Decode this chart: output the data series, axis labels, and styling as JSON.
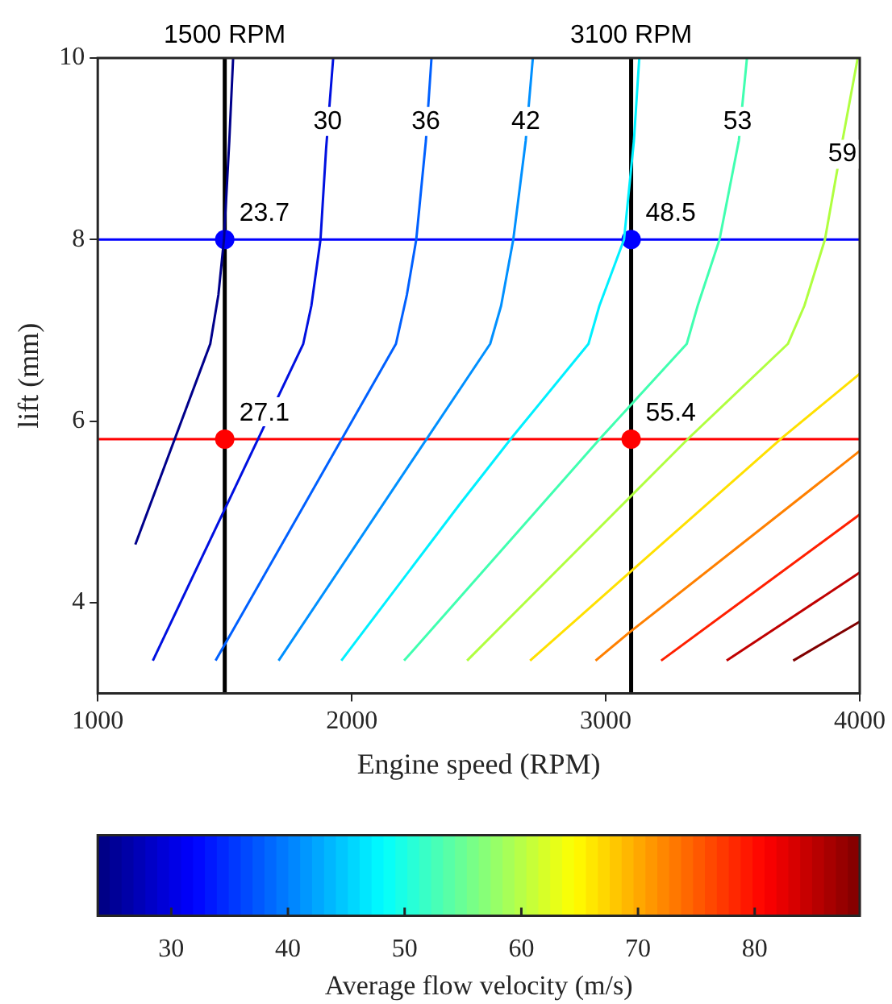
{
  "chart_data": {
    "type": "line",
    "xlabel": "Engine speed (RPM)",
    "ylabel": "lift (mm)",
    "clabel": "Average flow velocity (m/s)",
    "xlim": [
      1000,
      4000
    ],
    "xticks": [
      1000,
      2000,
      3000,
      4000
    ],
    "ylim": [
      3,
      10
    ],
    "yticks": [
      4,
      6,
      8,
      10
    ],
    "clim": [
      23.7,
      89
    ],
    "cticks": [
      30,
      40,
      50,
      60,
      70,
      80
    ],
    "grid": false,
    "legend": false,
    "marker": "none",
    "line_style": "solid",
    "series": [
      {
        "color": "#00008b",
        "x": [
          1148,
          1443,
          1475,
          1497,
          1518,
          1533
        ],
        "values": [
          4.64,
          6.85,
          7.39,
          8.0,
          9.09,
          10
        ]
      },
      {
        "color": "#0010e0",
        "x": [
          1217,
          1809,
          1841,
          1877,
          1899,
          1927
        ],
        "values": [
          3.36,
          6.85,
          7.27,
          8.0,
          9.0,
          10
        ]
      },
      {
        "color": "#0060ff",
        "x": [
          1464,
          2174,
          2217,
          2254,
          2292,
          2314
        ],
        "values": [
          3.36,
          6.85,
          7.39,
          8.0,
          9.09,
          10
        ]
      },
      {
        "color": "#0090ff",
        "x": [
          1712,
          2545,
          2588,
          2636,
          2685,
          2713
        ],
        "values": [
          3.36,
          6.85,
          7.27,
          8.0,
          9.09,
          10
        ]
      },
      {
        "color": "#00f0ff",
        "x": [
          1959,
          2427,
          2631,
          2932,
          2975,
          3072,
          3111,
          3132
        ],
        "values": [
          3.36,
          5.09,
          5.82,
          6.85,
          7.27,
          8.0,
          9.09,
          10
        ]
      },
      {
        "color": "#40ffb0",
        "x": [
          2206,
          2427,
          2982,
          3319,
          3362,
          3448,
          3524,
          3556
        ],
        "values": [
          3.36,
          4.06,
          5.82,
          6.85,
          7.27,
          8.0,
          9.09,
          10
        ]
      },
      {
        "color": "#b0ff40",
        "x": [
          2454,
          3330,
          3717,
          3782,
          3863,
          3932,
          3992
        ],
        "values": [
          3.36,
          5.82,
          6.85,
          7.27,
          8.0,
          9.09,
          10
        ]
      },
      {
        "color": "#ffe000",
        "x": [
          2702,
          3696,
          4000
        ],
        "values": [
          3.36,
          5.82,
          6.52
        ]
      },
      {
        "color": "#ff8000",
        "x": [
          2960,
          3093,
          4000
        ],
        "values": [
          3.36,
          3.67,
          5.67
        ]
      },
      {
        "color": "#ff2000",
        "x": [
          3218,
          4000
        ],
        "values": [
          3.36,
          4.97
        ]
      },
      {
        "color": "#c00000",
        "x": [
          3476,
          4000
        ],
        "values": [
          3.36,
          4.33
        ]
      },
      {
        "color": "#800000",
        "x": [
          3738,
          4000
        ],
        "values": [
          3.36,
          3.79
        ]
      },
      {
        "type": "scatter",
        "marker": "circle",
        "color": "#0000ff",
        "x": [
          1500,
          3100
        ],
        "values": [
          8.0,
          8.0
        ]
      },
      {
        "type": "scatter",
        "marker": "circle",
        "color": "#ff0000",
        "x": [
          1500,
          3100
        ],
        "values": [
          5.8,
          5.8
        ]
      }
    ],
    "ref_lines": [
      {
        "axis": "x",
        "value": 1500,
        "label": "1500 RPM",
        "color": "#000000"
      },
      {
        "axis": "x",
        "value": 3100,
        "label": "3100 RPM",
        "color": "#000000"
      },
      {
        "axis": "y",
        "value": 8.0,
        "color": "#0000ff"
      },
      {
        "axis": "y",
        "value": 5.8,
        "color": "#ff0000"
      }
    ],
    "annotations": [
      {
        "text": "30",
        "x": 1905,
        "y": 9.3
      },
      {
        "text": "36",
        "x": 2292,
        "y": 9.3
      },
      {
        "text": "42",
        "x": 2685,
        "y": 9.3
      },
      {
        "text": "53",
        "x": 3519,
        "y": 9.3
      },
      {
        "text": "59",
        "x": 3932,
        "y": 8.94
      },
      {
        "text": "23.7",
        "x": 1500,
        "y": 8.0
      },
      {
        "text": "48.5",
        "x": 3100,
        "y": 8.0
      },
      {
        "text": "27.1",
        "x": 1500,
        "y": 5.8
      },
      {
        "text": "55.4",
        "x": 3100,
        "y": 5.8
      }
    ]
  }
}
